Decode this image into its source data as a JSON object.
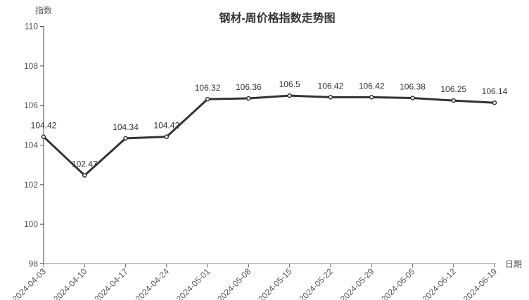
{
  "title": "钢材-周价格指数走势图",
  "chart_data": {
    "type": "line",
    "title": "钢材-周价格指数走势图",
    "xlabel": "日期",
    "ylabel": "指数",
    "categories": [
      "2024-04-03",
      "2024-04-10",
      "2024-04-17",
      "2024-04-24",
      "2024-05-01",
      "2024-05-08",
      "2024-05-15",
      "2024-05-22",
      "2024-05-29",
      "2024-06-05",
      "2024-06-12",
      "2024-06-19"
    ],
    "values": [
      104.42,
      102.47,
      104.34,
      104.42,
      106.32,
      106.36,
      106.5,
      106.42,
      106.42,
      106.38,
      106.25,
      106.14
    ],
    "point_labels": [
      "104.42",
      "102.47",
      "104.34",
      "104.42",
      "106.32",
      "106.36",
      "106.5",
      "106.42",
      "106.42",
      "106.38",
      "106.25",
      "106.14"
    ],
    "ylim": [
      98,
      110
    ],
    "y_ticks": [
      98,
      100,
      102,
      104,
      106,
      108,
      110
    ],
    "grid": false,
    "legend": false,
    "x_label_rotation": -45,
    "colors": {
      "line": "#333333",
      "marker_fill": "#ffffff",
      "marker_stroke": "#333333",
      "y_axis": "#444444",
      "x_axis": "#999999",
      "tick": "#666666",
      "label_text": "#333333",
      "axis_text": "#555555",
      "background": "#ffffff"
    }
  }
}
